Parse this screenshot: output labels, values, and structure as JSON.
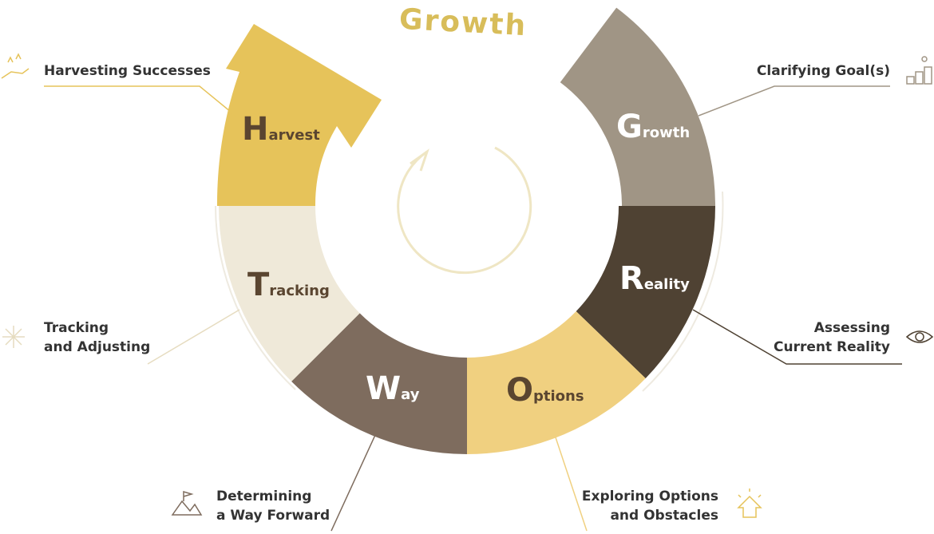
{
  "title": "Growth",
  "segments": [
    {
      "letter": "G",
      "rest": "rowth",
      "description": [
        "Clarifying Goal(s)"
      ]
    },
    {
      "letter": "R",
      "rest": "eality",
      "description": [
        "Assessing",
        "Current Reality"
      ]
    },
    {
      "letter": "O",
      "rest": "ptions",
      "description": [
        "Exploring Options",
        "and Obstacles"
      ]
    },
    {
      "letter": "W",
      "rest": "ay",
      "description": [
        "Determining",
        "a Way Forward"
      ]
    },
    {
      "letter": "T",
      "rest": "racking",
      "description": [
        "Tracking",
        "and Adjusting"
      ]
    },
    {
      "letter": "H",
      "rest": "arvest",
      "description": [
        "Harvesting Successes"
      ]
    }
  ]
}
